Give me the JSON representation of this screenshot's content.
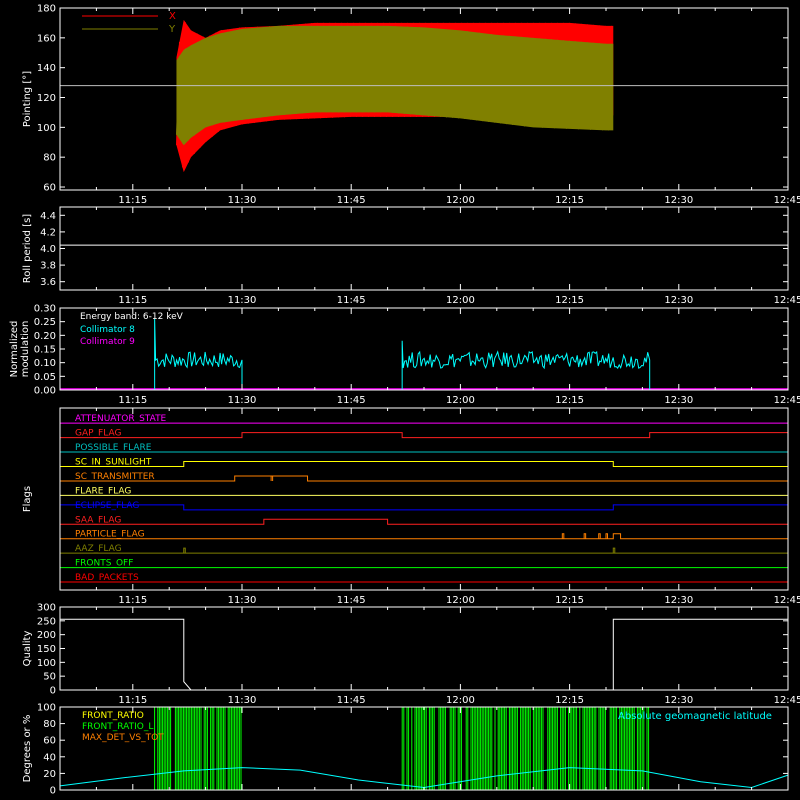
{
  "figure": {
    "background": "#000000",
    "axis_color": "#ffffff"
  },
  "chart_data": [
    {
      "id": "pointing",
      "type": "area",
      "ylabel": "Pointing [°]",
      "xlim": [
        "11:05",
        "12:45"
      ],
      "ylim": [
        58,
        180
      ],
      "yticks": [
        60,
        80,
        100,
        120,
        140,
        160,
        180
      ],
      "xtick_labels": [
        "11:15",
        "11:30",
        "11:45",
        "12:00",
        "12:15",
        "12:30",
        "12:45"
      ],
      "reference_line": 128,
      "legend": {
        "placement": "top-left",
        "entries": [
          {
            "name": "X",
            "color": "#ff0000"
          },
          {
            "name": "Y",
            "color": "#808000"
          }
        ]
      },
      "series": [
        {
          "name": "X",
          "color": "#ff0000",
          "style": "band",
          "x": [
            "11:21",
            "11:22",
            "11:23",
            "11:25",
            "11:27",
            "11:30",
            "11:35",
            "11:40",
            "11:45",
            "11:50",
            "11:55",
            "12:00",
            "12:05",
            "12:10",
            "12:15",
            "12:20",
            "12:21"
          ],
          "upper": [
            147,
            172,
            165,
            160,
            165,
            167,
            168,
            170,
            170,
            170,
            170,
            170,
            170,
            170,
            170,
            168,
            168
          ],
          "lower": [
            88,
            70,
            80,
            90,
            98,
            102,
            105,
            106,
            107,
            107,
            107,
            107,
            107,
            107,
            107,
            107,
            108
          ]
        },
        {
          "name": "Y",
          "color": "#808000",
          "style": "band",
          "x": [
            "11:21",
            "11:22",
            "11:23",
            "11:25",
            "11:27",
            "11:30",
            "11:35",
            "11:40",
            "11:45",
            "11:50",
            "11:55",
            "12:00",
            "12:05",
            "12:10",
            "12:15",
            "12:20",
            "12:21"
          ],
          "upper": [
            145,
            152,
            155,
            160,
            163,
            166,
            168,
            168,
            168,
            168,
            167,
            165,
            162,
            160,
            158,
            156,
            156
          ],
          "lower": [
            95,
            88,
            93,
            100,
            103,
            105,
            108,
            110,
            110,
            110,
            108,
            106,
            103,
            100,
            99,
            98,
            98
          ]
        }
      ]
    },
    {
      "id": "roll",
      "type": "line",
      "ylabel": "Roll period [s]",
      "xlim": [
        "11:05",
        "12:45"
      ],
      "ylim": [
        3.5,
        4.5
      ],
      "yticks": [
        3.6,
        3.8,
        4.0,
        4.2,
        4.4
      ],
      "ytick_labels": [
        "3.6",
        "3.8",
        "4.0",
        "4.2",
        "4.4"
      ],
      "xtick_labels": [
        "11:15",
        "11:30",
        "11:45",
        "12:00",
        "12:15",
        "12:30",
        "12:45"
      ],
      "series": [
        {
          "name": "",
          "color": "#ffffff",
          "x": [
            "11:05",
            "12:45"
          ],
          "y": [
            4.04,
            4.04
          ]
        }
      ]
    },
    {
      "id": "modulation",
      "type": "line",
      "ylabel_lines": [
        "Normalized",
        "modulation"
      ],
      "xlim": [
        "11:05",
        "12:45"
      ],
      "ylim": [
        0,
        0.3
      ],
      "yticks": [
        0,
        0.05,
        0.1,
        0.15,
        0.2,
        0.25,
        0.3
      ],
      "ytick_labels": [
        "0.00",
        "0.05",
        "0.10",
        "0.15",
        "0.20",
        "0.25",
        "0.30"
      ],
      "xtick_labels": [
        "11:15",
        "11:30",
        "11:45",
        "12:00",
        "12:15",
        "12:30",
        "12:45"
      ],
      "legend": {
        "placement": "top-left",
        "title": "Energy band: 6-12 keV",
        "entries": [
          {
            "name": "Collimator 8",
            "color": "#00ffff"
          },
          {
            "name": "Collimator 9",
            "color": "#ff00ff"
          }
        ]
      },
      "series": [
        {
          "name": "Collimator 8",
          "color": "#00ffff",
          "segments": [
            {
              "x_start": "11:18",
              "x_end": "11:30",
              "level": 0.11,
              "spike": 0.26
            },
            {
              "x_start": "11:52",
              "x_end": "12:26",
              "level": 0.11,
              "spike": 0.18
            }
          ]
        },
        {
          "name": "Collimator 9",
          "color": "#ff00ff",
          "x": [
            "11:05",
            "12:45"
          ],
          "y": [
            0,
            0
          ]
        }
      ]
    },
    {
      "id": "flags",
      "type": "line",
      "ylabel": "Flags",
      "xlim": [
        "11:05",
        "12:45"
      ],
      "xtick_labels": [
        "11:15",
        "11:30",
        "11:45",
        "12:00",
        "12:15",
        "12:30",
        "12:45"
      ],
      "flags": [
        {
          "name": "ATTENUATOR_STATE",
          "color": "#ff00ff",
          "high": []
        },
        {
          "name": "GAP_FLAG",
          "color": "#ff2020",
          "high": [
            [
              "11:30",
              "11:52"
            ],
            [
              "12:26",
              "12:45"
            ]
          ]
        },
        {
          "name": "POSSIBLE_FLARE",
          "color": "#00bfbf",
          "high": []
        },
        {
          "name": "SC_IN_SUNLIGHT",
          "color": "#ffff00",
          "high": [
            [
              "11:22",
              "12:21"
            ]
          ]
        },
        {
          "name": "SC_TRANSMITTER",
          "color": "#ff8000",
          "high": [
            [
              "11:29",
              "11:39"
            ]
          ],
          "pulses": [
            "11:34"
          ]
        },
        {
          "name": "FLARE_FLAG",
          "color": "#ffff60",
          "high": []
        },
        {
          "name": "ECLIPSE_FLAG",
          "color": "#0000ff",
          "high": [
            [
              "11:05",
              "11:22"
            ],
            [
              "12:21",
              "12:45"
            ]
          ]
        },
        {
          "name": "SAA_FLAG",
          "color": "#ff2020",
          "high": [
            [
              "11:33",
              "11:50"
            ]
          ]
        },
        {
          "name": "PARTICLE_FLAG",
          "color": "#ff8000",
          "high": [
            [
              "12:21",
              "12:22"
            ]
          ],
          "pulses": [
            "12:14",
            "12:17",
            "12:19",
            "12:20"
          ]
        },
        {
          "name": "AAZ_FLAG",
          "color": "#808000",
          "high": [],
          "pulses": [
            "11:22",
            "12:21"
          ]
        },
        {
          "name": "FRONTS_OFF",
          "color": "#00ff00",
          "high": []
        },
        {
          "name": "BAD_PACKETS",
          "color": "#ff0000",
          "high": []
        }
      ]
    },
    {
      "id": "quality",
      "type": "line",
      "ylabel": "Quality",
      "xlim": [
        "11:05",
        "12:45"
      ],
      "ylim": [
        0,
        300
      ],
      "yticks": [
        0,
        50,
        100,
        150,
        200,
        250,
        300
      ],
      "xtick_labels": [
        "11:15",
        "11:30",
        "11:45",
        "12:00",
        "12:15",
        "12:30",
        "12:45"
      ],
      "series": [
        {
          "name": "",
          "color": "#ffffff",
          "x": [
            "11:05",
            "11:22",
            "11:22",
            "11:23",
            "12:21",
            "12:21",
            "12:45"
          ],
          "y": [
            256,
            256,
            30,
            0,
            0,
            256,
            256
          ]
        }
      ]
    },
    {
      "id": "ratios",
      "type": "line",
      "ylabel": "Degrees or %",
      "xlim": [
        "11:05",
        "12:45"
      ],
      "ylim": [
        0,
        100
      ],
      "yticks": [
        0,
        20,
        40,
        60,
        80,
        100
      ],
      "legend": {
        "placement": "top-left",
        "entries": [
          {
            "name": "FRONT_RATIO",
            "color": "#ffff00"
          },
          {
            "name": "FRONT_RATIO_L",
            "color": "#00ff00"
          },
          {
            "name": "MAX_DET_VS_TOT",
            "color": "#ff8000"
          }
        ],
        "right_label": {
          "name": "Absolute geomagnetic latitude",
          "color": "#00ffff"
        }
      },
      "series": [
        {
          "name": "FRONT_RATIO_L",
          "color": "#00ff00",
          "spans": [
            [
              "11:18",
              "11:30"
            ],
            [
              "11:52",
              "12:26"
            ]
          ],
          "max": 100
        },
        {
          "name": "Absolute geomagnetic latitude",
          "color": "#00ffff",
          "x": [
            "11:05",
            "11:14",
            "11:22",
            "11:30",
            "11:38",
            "11:46",
            "11:55",
            "12:05",
            "12:15",
            "12:25",
            "12:33",
            "12:40",
            "12:45"
          ],
          "y": [
            5,
            15,
            23,
            27,
            24,
            12,
            3,
            17,
            27,
            23,
            10,
            3,
            18
          ]
        }
      ]
    }
  ]
}
